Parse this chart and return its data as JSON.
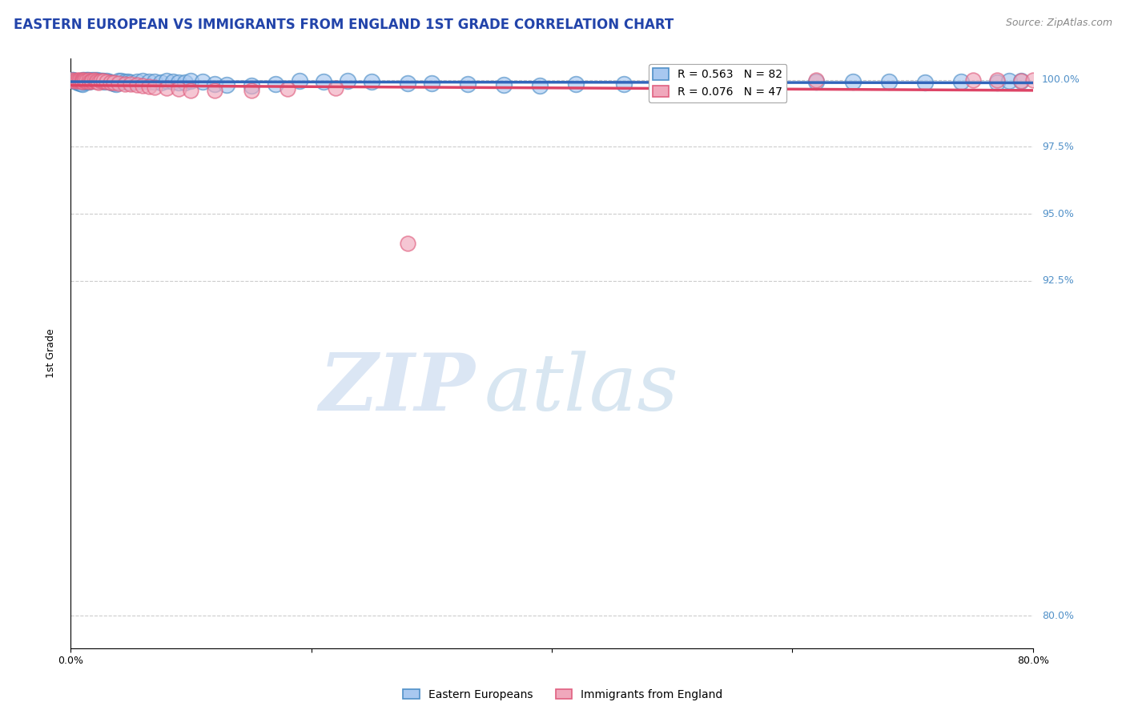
{
  "title": "EASTERN EUROPEAN VS IMMIGRANTS FROM ENGLAND 1ST GRADE CORRELATION CHART",
  "source_text": "Source: ZipAtlas.com",
  "ylabel": "1st Grade",
  "xlim": [
    0.0,
    0.8
  ],
  "ylim": [
    0.788,
    1.008
  ],
  "xticks": [
    0.0,
    0.2,
    0.4,
    0.6,
    0.8
  ],
  "xtick_labels": [
    "0.0%",
    "",
    "",
    "",
    "80.0%"
  ],
  "yticks": [
    0.8,
    0.925,
    0.95,
    0.975,
    1.0
  ],
  "ytick_labels": [
    "80.0%",
    "92.5%",
    "95.0%",
    "97.5%",
    "100.0%"
  ],
  "blue_color": "#a8c8f0",
  "pink_color": "#f0a8bc",
  "blue_edge_color": "#5090c8",
  "pink_edge_color": "#e06080",
  "blue_line_color": "#3366bb",
  "pink_line_color": "#dd4466",
  "legend_R_blue": "R = 0.563",
  "legend_N_blue": "N = 82",
  "legend_R_pink": "R = 0.076",
  "legend_N_pink": "N = 47",
  "blue_scatter_x": [
    0.001,
    0.002,
    0.003,
    0.004,
    0.005,
    0.006,
    0.007,
    0.008,
    0.009,
    0.01,
    0.01,
    0.01,
    0.01,
    0.011,
    0.011,
    0.012,
    0.013,
    0.013,
    0.014,
    0.014,
    0.015,
    0.015,
    0.016,
    0.017,
    0.018,
    0.019,
    0.02,
    0.021,
    0.022,
    0.023,
    0.024,
    0.025,
    0.026,
    0.027,
    0.028,
    0.03,
    0.032,
    0.034,
    0.036,
    0.038,
    0.04,
    0.042,
    0.045,
    0.048,
    0.05,
    0.055,
    0.06,
    0.065,
    0.07,
    0.075,
    0.08,
    0.085,
    0.09,
    0.095,
    0.1,
    0.11,
    0.12,
    0.13,
    0.15,
    0.17,
    0.19,
    0.21,
    0.23,
    0.25,
    0.28,
    0.3,
    0.33,
    0.36,
    0.39,
    0.42,
    0.46,
    0.5,
    0.54,
    0.58,
    0.62,
    0.65,
    0.68,
    0.71,
    0.74,
    0.77,
    0.78,
    0.79
  ],
  "blue_scatter_y": [
    0.9998,
    0.9998,
    0.9997,
    0.9995,
    0.9993,
    0.9991,
    0.9989,
    0.9988,
    0.9986,
    0.9998,
    0.9996,
    0.999,
    0.9985,
    0.9998,
    0.9993,
    0.9997,
    0.9998,
    0.9994,
    0.9998,
    0.9995,
    0.9998,
    0.9992,
    0.9997,
    0.9996,
    0.9998,
    0.9997,
    0.9998,
    0.9997,
    0.9998,
    0.9996,
    0.9995,
    0.9997,
    0.9996,
    0.9995,
    0.9993,
    0.9996,
    0.9992,
    0.999,
    0.9988,
    0.9985,
    0.9997,
    0.9995,
    0.9994,
    0.9992,
    0.999,
    0.9994,
    0.9996,
    0.9994,
    0.9993,
    0.9991,
    0.9995,
    0.9993,
    0.9991,
    0.9989,
    0.9995,
    0.9993,
    0.9985,
    0.998,
    0.9978,
    0.9985,
    0.9995,
    0.9994,
    0.9995,
    0.9993,
    0.9988,
    0.9987,
    0.9983,
    0.9981,
    0.9979,
    0.9985,
    0.9984,
    0.9992,
    0.999,
    0.9991,
    0.9993,
    0.9994,
    0.9992,
    0.999,
    0.9993,
    0.9991,
    0.9995,
    0.9997
  ],
  "pink_scatter_x": [
    0.001,
    0.003,
    0.005,
    0.006,
    0.007,
    0.008,
    0.009,
    0.01,
    0.01,
    0.011,
    0.012,
    0.013,
    0.015,
    0.016,
    0.017,
    0.018,
    0.02,
    0.021,
    0.022,
    0.023,
    0.025,
    0.027,
    0.03,
    0.033,
    0.036,
    0.04,
    0.045,
    0.05,
    0.055,
    0.06,
    0.065,
    0.07,
    0.08,
    0.09,
    0.1,
    0.12,
    0.15,
    0.18,
    0.22,
    0.28,
    0.52,
    0.55,
    0.62,
    0.75,
    0.77,
    0.79,
    0.8
  ],
  "pink_scatter_y": [
    0.9998,
    0.9997,
    0.9998,
    0.9996,
    0.9998,
    0.9995,
    0.9997,
    0.9998,
    0.9993,
    0.9998,
    0.9997,
    0.9995,
    0.9998,
    0.9994,
    0.9996,
    0.9995,
    0.9998,
    0.9996,
    0.9993,
    0.9991,
    0.9997,
    0.9995,
    0.9993,
    0.9991,
    0.9989,
    0.9987,
    0.9985,
    0.9983,
    0.998,
    0.9978,
    0.9975,
    0.9972,
    0.9968,
    0.9965,
    0.996,
    0.996,
    0.996,
    0.9965,
    0.997,
    0.939,
    0.9998,
    0.9997,
    0.9998,
    0.9999,
    0.9998,
    0.9997,
    0.9998
  ],
  "watermark_zip": "ZIP",
  "watermark_atlas": "atlas",
  "grid_color": "#cccccc",
  "background_color": "#ffffff",
  "title_fontsize": 12,
  "axis_label_fontsize": 9,
  "tick_fontsize": 9,
  "legend_fontsize": 10,
  "source_fontsize": 9
}
